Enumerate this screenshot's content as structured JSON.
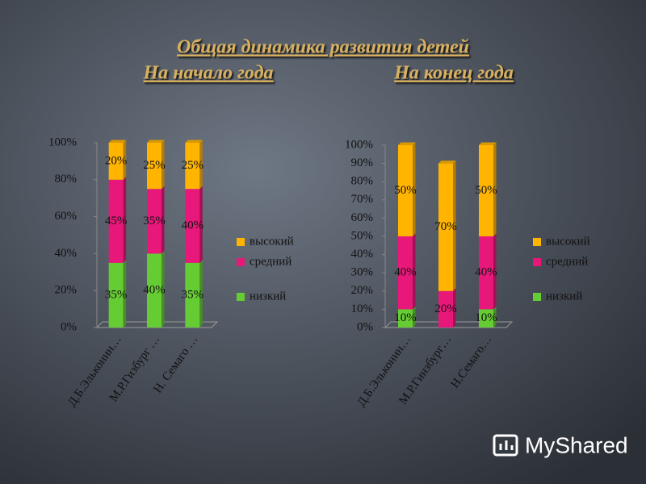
{
  "header": {
    "title": "Общая динамика развития детей",
    "watermark": "MyShared"
  },
  "chart_data": [
    {
      "type": "stacked-bar",
      "title": "На начало года",
      "categories": [
        "Д.Б.Эльконин…",
        "М.Р.Гизбург …",
        "Н. Семаго …"
      ],
      "series": [
        {
          "name": "низкий",
          "color": "#66cc33",
          "values": [
            35,
            40,
            35
          ],
          "value_labels": [
            "35%",
            "40%",
            "35%"
          ]
        },
        {
          "name": "средний",
          "color": "#e8187a",
          "values": [
            45,
            35,
            40
          ],
          "value_labels": [
            "45%",
            "35%",
            "40%"
          ]
        },
        {
          "name": "высокий",
          "color": "#ffb400",
          "values": [
            20,
            25,
            25
          ],
          "value_labels": [
            "20%",
            "25%",
            "25%"
          ]
        }
      ],
      "ylim": [
        0,
        100
      ],
      "yticks": [
        {
          "value": 0,
          "label": "0%"
        },
        {
          "value": 20,
          "label": "20%"
        },
        {
          "value": 40,
          "label": "40%"
        },
        {
          "value": 60,
          "label": "60%"
        },
        {
          "value": 80,
          "label": "80%"
        },
        {
          "value": 100,
          "label": "100%"
        }
      ],
      "legend": "right"
    },
    {
      "type": "stacked-bar",
      "title": "На конец года",
      "categories": [
        "Д.Б.Эльконин…",
        "М.Р.Гинзбург…",
        "Н.Семаго…"
      ],
      "series": [
        {
          "name": "низкий",
          "color": "#66cc33",
          "values": [
            10,
            0,
            10
          ],
          "value_labels": [
            "10%",
            null,
            "10%"
          ]
        },
        {
          "name": "средний",
          "color": "#e8187a",
          "values": [
            40,
            20,
            40
          ],
          "value_labels": [
            "40%",
            "20%",
            "40%"
          ]
        },
        {
          "name": "высокий",
          "color": "#ffb400",
          "values": [
            50,
            70,
            50
          ],
          "value_labels": [
            "50%",
            "70%",
            "50%"
          ]
        }
      ],
      "ylim": [
        0,
        100
      ],
      "yticks": [
        {
          "value": 0,
          "label": "0%"
        },
        {
          "value": 10,
          "label": "10%"
        },
        {
          "value": 20,
          "label": "20%"
        },
        {
          "value": 30,
          "label": "30%"
        },
        {
          "value": 40,
          "label": "40%"
        },
        {
          "value": 50,
          "label": "50%"
        },
        {
          "value": 60,
          "label": "60%"
        },
        {
          "value": 70,
          "label": "70%"
        },
        {
          "value": 80,
          "label": "80%"
        },
        {
          "value": 90,
          "label": "90%"
        },
        {
          "value": 100,
          "label": "100%"
        }
      ],
      "legend": "right"
    }
  ]
}
